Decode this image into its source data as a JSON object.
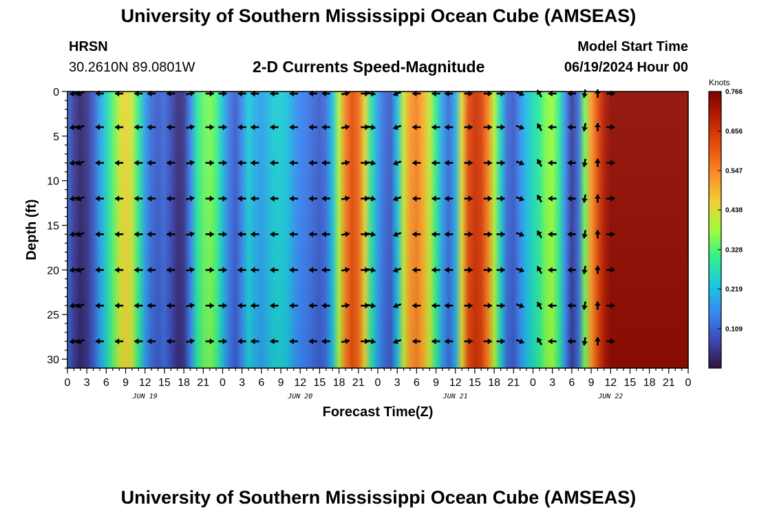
{
  "header": {
    "title": "University of Southern Mississippi Ocean Cube (AMSEAS)",
    "station": "HRSN",
    "coords": "30.2610N  89.0801W",
    "subtitle": "2-D Currents Speed-Magnitude",
    "model_start_label": "Model Start Time",
    "model_start_value": "06/19/2024 Hour 00"
  },
  "footer": {
    "title": "University of Southern Mississippi Ocean Cube (AMSEAS)"
  },
  "chart_data": {
    "type": "heatmap",
    "title": "2-D Currents Speed-Magnitude",
    "xlabel": "Forecast Time(Z)",
    "ylabel": "Depth (ft)",
    "x_range_hours": [
      0,
      96
    ],
    "x_tick_labels": [
      "0",
      "3",
      "6",
      "9",
      "12",
      "15",
      "18",
      "21",
      "0",
      "3",
      "6",
      "9",
      "12",
      "15",
      "18",
      "21",
      "0",
      "3",
      "6",
      "9",
      "12",
      "15",
      "18",
      "21",
      "0",
      "3",
      "6",
      "9",
      "12",
      "15",
      "18",
      "21",
      "0"
    ],
    "date_labels": [
      {
        "text": "JUN 19",
        "hour": 12
      },
      {
        "text": "JUN 20",
        "hour": 36
      },
      {
        "text": "JUN 21",
        "hour": 60
      },
      {
        "text": "JUN 22",
        "hour": 84
      }
    ],
    "y_range_ft": [
      0,
      31
    ],
    "y_ticks": [
      0,
      5,
      10,
      15,
      20,
      25,
      30
    ],
    "colorbar": {
      "unit": "Knots",
      "min": 0.0,
      "max": 0.766,
      "tick_labels": [
        "0.766",
        "0.656",
        "0.547",
        "0.438",
        "0.328",
        "0.219",
        "0.109"
      ],
      "tick_values": [
        0.766,
        0.656,
        0.547,
        0.438,
        0.328,
        0.219,
        0.109
      ]
    },
    "speed_profile_knots": [
      {
        "hour": 0,
        "speed": 0.12
      },
      {
        "hour": 1,
        "speed": 0.06
      },
      {
        "hour": 2,
        "speed": 0.03
      },
      {
        "hour": 3,
        "speed": 0.05
      },
      {
        "hour": 4,
        "speed": 0.1
      },
      {
        "hour": 5,
        "speed": 0.18
      },
      {
        "hour": 6,
        "speed": 0.25
      },
      {
        "hour": 7,
        "speed": 0.33
      },
      {
        "hour": 8,
        "speed": 0.42
      },
      {
        "hour": 9,
        "speed": 0.46
      },
      {
        "hour": 10,
        "speed": 0.42
      },
      {
        "hour": 11,
        "speed": 0.3
      },
      {
        "hour": 12,
        "speed": 0.18
      },
      {
        "hour": 13,
        "speed": 0.12
      },
      {
        "hour": 14,
        "speed": 0.1
      },
      {
        "hour": 15,
        "speed": 0.12
      },
      {
        "hour": 16,
        "speed": 0.08
      },
      {
        "hour": 17,
        "speed": 0.04
      },
      {
        "hour": 18,
        "speed": 0.05
      },
      {
        "hour": 19,
        "speed": 0.15
      },
      {
        "hour": 20,
        "speed": 0.28
      },
      {
        "hour": 21,
        "speed": 0.34
      },
      {
        "hour": 22,
        "speed": 0.36
      },
      {
        "hour": 23,
        "speed": 0.32
      },
      {
        "hour": 24,
        "speed": 0.22
      },
      {
        "hour": 25,
        "speed": 0.14
      },
      {
        "hour": 26,
        "speed": 0.1
      },
      {
        "hour": 27,
        "speed": 0.16
      },
      {
        "hour": 28,
        "speed": 0.24
      },
      {
        "hour": 29,
        "speed": 0.2
      },
      {
        "hour": 30,
        "speed": 0.18
      },
      {
        "hour": 31,
        "speed": 0.21
      },
      {
        "hour": 32,
        "speed": 0.24
      },
      {
        "hour": 33,
        "speed": 0.24
      },
      {
        "hour": 34,
        "speed": 0.22
      },
      {
        "hour": 35,
        "speed": 0.18
      },
      {
        "hour": 36,
        "speed": 0.15
      },
      {
        "hour": 37,
        "speed": 0.14
      },
      {
        "hour": 38,
        "speed": 0.12
      },
      {
        "hour": 39,
        "speed": 0.1
      },
      {
        "hour": 40,
        "speed": 0.13
      },
      {
        "hour": 41,
        "speed": 0.22
      },
      {
        "hour": 42,
        "speed": 0.4
      },
      {
        "hour": 43,
        "speed": 0.55
      },
      {
        "hour": 44,
        "speed": 0.62
      },
      {
        "hour": 45,
        "speed": 0.58
      },
      {
        "hour": 46,
        "speed": 0.45
      },
      {
        "hour": 47,
        "speed": 0.28
      },
      {
        "hour": 48,
        "speed": 0.18
      },
      {
        "hour": 49,
        "speed": 0.12
      },
      {
        "hour": 50,
        "speed": 0.1
      },
      {
        "hour": 51,
        "speed": 0.22
      },
      {
        "hour": 52,
        "speed": 0.42
      },
      {
        "hour": 53,
        "speed": 0.52
      },
      {
        "hour": 54,
        "speed": 0.55
      },
      {
        "hour": 55,
        "speed": 0.5
      },
      {
        "hour": 56,
        "speed": 0.42
      },
      {
        "hour": 57,
        "speed": 0.3
      },
      {
        "hour": 58,
        "speed": 0.18
      },
      {
        "hour": 59,
        "speed": 0.12
      },
      {
        "hour": 60,
        "speed": 0.2
      },
      {
        "hour": 61,
        "speed": 0.45
      },
      {
        "hour": 62,
        "speed": 0.62
      },
      {
        "hour": 63,
        "speed": 0.66
      },
      {
        "hour": 64,
        "speed": 0.64
      },
      {
        "hour": 65,
        "speed": 0.55
      },
      {
        "hour": 66,
        "speed": 0.4
      },
      {
        "hour": 67,
        "speed": 0.25
      },
      {
        "hour": 68,
        "speed": 0.12
      },
      {
        "hour": 69,
        "speed": 0.1
      },
      {
        "hour": 70,
        "speed": 0.16
      },
      {
        "hour": 71,
        "speed": 0.22
      },
      {
        "hour": 72,
        "speed": 0.26
      },
      {
        "hour": 73,
        "speed": 0.3
      },
      {
        "hour": 74,
        "speed": 0.36
      },
      {
        "hour": 75,
        "speed": 0.38
      },
      {
        "hour": 76,
        "speed": 0.3
      },
      {
        "hour": 77,
        "speed": 0.16
      },
      {
        "hour": 78,
        "speed": 0.06
      },
      {
        "hour": 79,
        "speed": 0.12
      },
      {
        "hour": 80,
        "speed": 0.35
      },
      {
        "hour": 81,
        "speed": 0.52
      },
      {
        "hour": 82,
        "speed": 0.62
      },
      {
        "hour": 83,
        "speed": 0.7
      },
      {
        "hour": 84,
        "speed": 0.74
      }
    ],
    "arrow_depths_ft": [
      0,
      4,
      8,
      12,
      16,
      20,
      24,
      28
    ],
    "arrow_hours": [
      1,
      2,
      5,
      8,
      11,
      13,
      16,
      19,
      22,
      24,
      27,
      29,
      32,
      35,
      38,
      40,
      43,
      46,
      47,
      51,
      54,
      57,
      59,
      62,
      65,
      67,
      70,
      73,
      75,
      78,
      80,
      82,
      84
    ],
    "arrow_direction_deg": [
      190,
      200,
      180,
      180,
      180,
      180,
      180,
      10,
      0,
      0,
      180,
      180,
      180,
      180,
      180,
      180,
      10,
      0,
      350,
      200,
      180,
      180,
      180,
      0,
      0,
      0,
      340,
      120,
      180,
      180,
      260,
      90,
      0
    ]
  }
}
